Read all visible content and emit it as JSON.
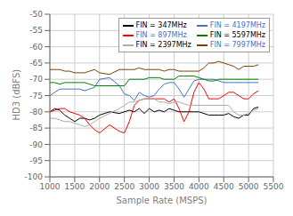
{
  "chart_data": {
    "type": "line",
    "xlabel": "Sample Rate (MSPS)",
    "ylabel": "HD3 (dBFS)",
    "x": [
      1000,
      1100,
      1200,
      1300,
      1400,
      1500,
      1600,
      1700,
      1800,
      1900,
      2000,
      2200,
      2400,
      2500,
      2600,
      2700,
      2800,
      2900,
      3000,
      3100,
      3200,
      3300,
      3400,
      3500,
      3600,
      3700,
      3800,
      3900,
      4000,
      4100,
      4200,
      4300,
      4400,
      4500,
      4600,
      4700,
      4800,
      4900,
      5000,
      5100,
      5200
    ],
    "series": [
      {
        "name": "FIN = 347MHz",
        "color": "#000000",
        "values": [
          -80,
          -79,
          -79.5,
          -81,
          -82,
          -83,
          -82,
          -82,
          -82.5,
          -82,
          -81,
          -80,
          -80.5,
          -80,
          -79.5,
          -80,
          -79,
          -80.5,
          -79,
          -80,
          -79.5,
          -80,
          -79,
          -79.5,
          -80,
          -80,
          -80,
          -80,
          -80,
          -80.5,
          -81,
          -81,
          -81,
          -81,
          -80.5,
          -81.5,
          -82,
          -81,
          -81,
          -79,
          -78.5
        ]
      },
      {
        "name": "FIN = 897MHz",
        "color": "#ff0000",
        "values": [
          -80,
          -79.5,
          -79,
          -79,
          -80,
          -80.5,
          -81,
          -82,
          -84,
          -85.5,
          -86.5,
          -84,
          -86,
          -86.5,
          -83,
          -78,
          -76.5,
          -76,
          -76,
          -76,
          -76,
          -76,
          -77,
          -76,
          -79,
          -83,
          -80,
          -74,
          -71,
          -73,
          -76,
          -76,
          -76,
          -75,
          -74,
          -74,
          -75,
          -76,
          -76,
          -74.5,
          -73.5
        ]
      },
      {
        "name": "FIN = 2397MHz",
        "color": "#aaaaaa",
        "values": [
          -82,
          -82,
          -82.5,
          -83,
          -83,
          -83.5,
          -84,
          -84.5,
          -84,
          -83,
          -82,
          -80.5,
          -79,
          -78,
          -77,
          -77,
          -76.5,
          -76,
          -76,
          -76,
          -77,
          -77,
          -77.5,
          -77,
          -77,
          -77.5,
          -78,
          -78,
          -78,
          -78,
          -78,
          -78,
          -78,
          -78,
          -78,
          -80,
          -81,
          -81,
          -80.5,
          -79.5,
          -79
        ]
      },
      {
        "name": "FIN = 4197MHz",
        "color": "#4472c4",
        "values": [
          -75,
          -74,
          -73,
          -73,
          -73,
          -73,
          -73,
          -73.5,
          -73,
          -72.5,
          -70,
          -69.5,
          -72,
          -74.5,
          -75,
          -76.5,
          -74,
          -75,
          -75.5,
          -75,
          -73,
          -71.5,
          -71,
          -71,
          -73,
          -75.5,
          -73,
          -70.5,
          -70,
          -70,
          -70,
          -70,
          -70.5,
          -71,
          -71,
          -71,
          -71,
          -71,
          -71,
          -71,
          -71
        ]
      },
      {
        "name": "FIN = 5597MHz",
        "color": "#008000",
        "values": [
          -71,
          -71,
          -71.5,
          -71,
          -71,
          -71,
          -71,
          -71,
          -71.5,
          -72,
          -72,
          -72,
          -72,
          -72,
          -70,
          -70,
          -70,
          -70,
          -69.5,
          -69.5,
          -69.5,
          -70,
          -70,
          -70,
          -69,
          -69,
          -69,
          -69,
          -69.5,
          -70,
          -70.5,
          -70.5,
          -70,
          -70,
          -70,
          -70,
          -70,
          -70,
          -70,
          -70,
          -70
        ]
      },
      {
        "name": "FIN = 7997MHz",
        "color": "#7B3F00",
        "values": [
          -67,
          -67,
          -67,
          -67.5,
          -67.5,
          -68,
          -68,
          -68,
          -67.5,
          -67,
          -68,
          -68.5,
          -67,
          -67,
          -67,
          -67,
          -66.5,
          -67,
          -67,
          -67,
          -67,
          -67.5,
          -67,
          -67,
          -67.5,
          -67.5,
          -67.5,
          -67.5,
          -67.5,
          -66.5,
          -65,
          -65,
          -64.5,
          -65,
          -65.5,
          -66,
          -67,
          -66,
          -66,
          -66,
          -65.5
        ]
      }
    ],
    "xlim": [
      1000,
      5500
    ],
    "ylim": [
      -100,
      -50
    ],
    "xticks": [
      1000,
      1500,
      2000,
      2500,
      3000,
      3500,
      4000,
      4500,
      5000,
      5500
    ],
    "yticks": [
      -100,
      -95,
      -90,
      -85,
      -80,
      -75,
      -70,
      -65,
      -60,
      -55,
      -50
    ],
    "grid": true,
    "legend": "upper right"
  }
}
